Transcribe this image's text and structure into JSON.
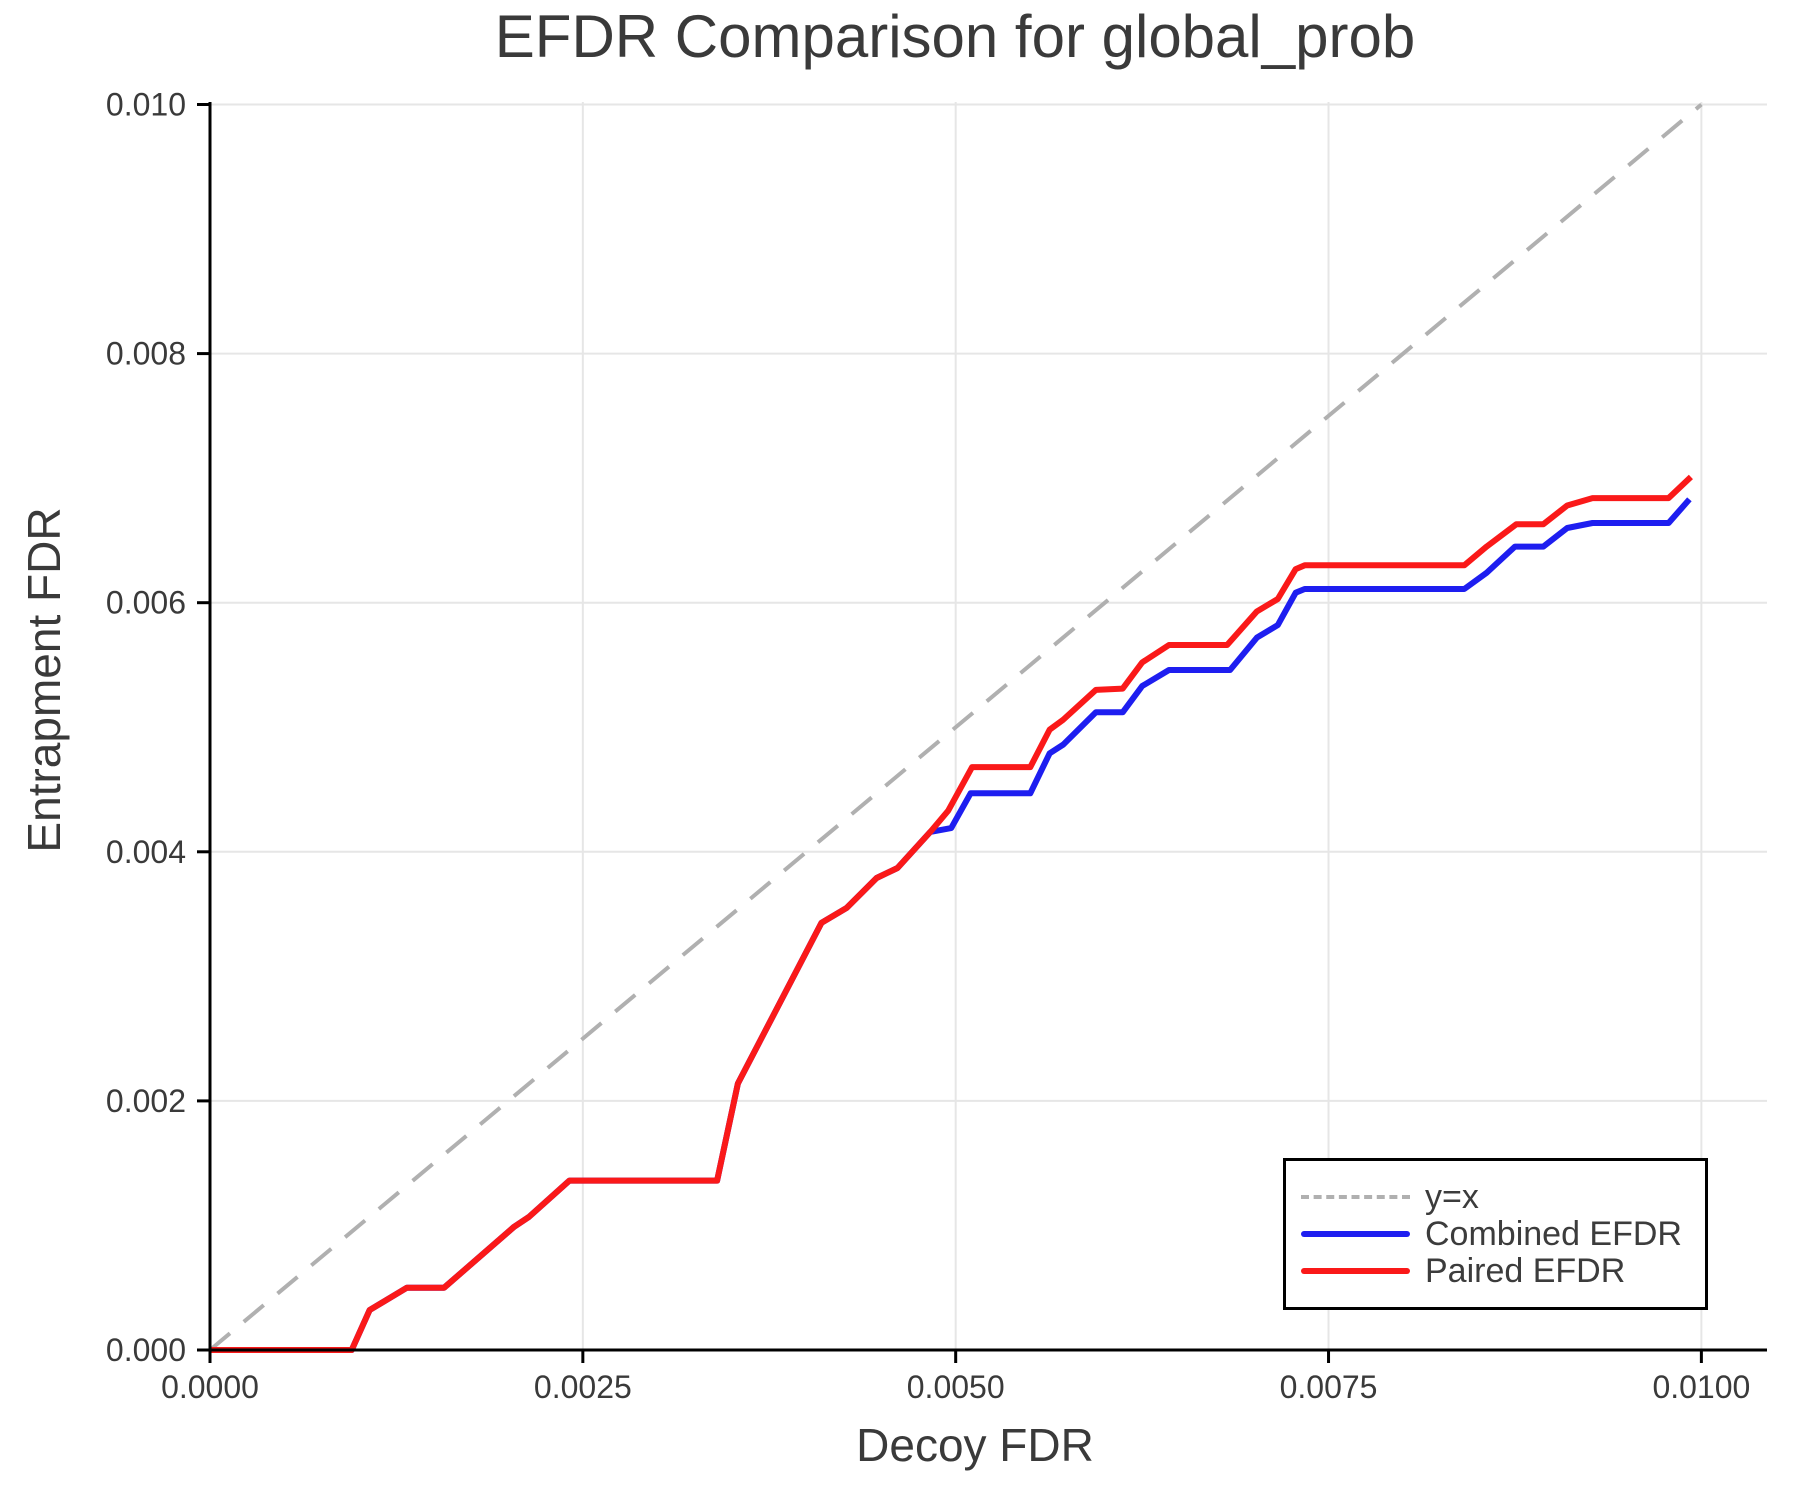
{
  "chart_data": {
    "type": "line",
    "title": "EFDR Comparison for global_prob",
    "xlabel": "Decoy FDR",
    "ylabel": "Entrapment FDR",
    "xlim": [
      0,
      0.01044
    ],
    "ylim": [
      0,
      0.01002
    ],
    "grid": true,
    "x_ticks": {
      "values": [
        0.0,
        0.0025,
        0.005,
        0.0075,
        0.01
      ],
      "labels": [
        "0.0000",
        "0.0025",
        "0.0050",
        "0.0075",
        "0.0100"
      ]
    },
    "y_ticks": {
      "values": [
        0.0,
        0.002,
        0.004,
        0.006,
        0.008,
        0.01
      ],
      "labels": [
        "0.000",
        "0.002",
        "0.004",
        "0.006",
        "0.008",
        "0.010"
      ]
    },
    "legend": {
      "position": "bottom-right"
    },
    "series": [
      {
        "name": "y=x",
        "color": "#b0b0b0",
        "style": "dashed",
        "width": 4,
        "points": [
          [
            0.0,
            0.0
          ],
          [
            0.01,
            0.01
          ]
        ]
      },
      {
        "name": "Combined EFDR",
        "color": "#1e1ef0",
        "style": "solid",
        "width": 6,
        "points": [
          [
            0.0,
            0.0
          ],
          [
            0.00095,
            0.0
          ],
          [
            0.00107,
            0.00032
          ],
          [
            0.00132,
            0.0005
          ],
          [
            0.00157,
            0.0005
          ],
          [
            0.00204,
            0.00099
          ],
          [
            0.00214,
            0.00107
          ],
          [
            0.00241,
            0.00136
          ],
          [
            0.0034,
            0.00136
          ],
          [
            0.00354,
            0.00214
          ],
          [
            0.0041,
            0.00343
          ],
          [
            0.00427,
            0.00355
          ],
          [
            0.00447,
            0.00379
          ],
          [
            0.00461,
            0.00387
          ],
          [
            0.00483,
            0.00416
          ],
          [
            0.00497,
            0.00419
          ],
          [
            0.0051,
            0.00447
          ],
          [
            0.0055,
            0.00447
          ],
          [
            0.00563,
            0.00479
          ],
          [
            0.00572,
            0.00486
          ],
          [
            0.00594,
            0.00512
          ],
          [
            0.00612,
            0.00512
          ],
          [
            0.00625,
            0.00533
          ],
          [
            0.00643,
            0.00546
          ],
          [
            0.00684,
            0.00546
          ],
          [
            0.00702,
            0.00572
          ],
          [
            0.00716,
            0.00582
          ],
          [
            0.00728,
            0.00608
          ],
          [
            0.00734,
            0.00611
          ],
          [
            0.00841,
            0.00611
          ],
          [
            0.00856,
            0.00624
          ],
          [
            0.00875,
            0.00645
          ],
          [
            0.00894,
            0.00645
          ],
          [
            0.0091,
            0.0066
          ],
          [
            0.00927,
            0.00664
          ],
          [
            0.00978,
            0.00664
          ],
          [
            0.00992,
            0.00683
          ]
        ]
      },
      {
        "name": "Paired EFDR",
        "color": "#fa1919",
        "style": "solid",
        "width": 6,
        "points": [
          [
            0.0,
            0.0
          ],
          [
            0.00095,
            0.0
          ],
          [
            0.00107,
            0.00032
          ],
          [
            0.00132,
            0.0005
          ],
          [
            0.00157,
            0.0005
          ],
          [
            0.00204,
            0.00099
          ],
          [
            0.00214,
            0.00107
          ],
          [
            0.00241,
            0.00136
          ],
          [
            0.0034,
            0.00136
          ],
          [
            0.00354,
            0.00214
          ],
          [
            0.0041,
            0.00343
          ],
          [
            0.00427,
            0.00355
          ],
          [
            0.00447,
            0.00379
          ],
          [
            0.00461,
            0.00387
          ],
          [
            0.00483,
            0.00416
          ],
          [
            0.00495,
            0.00433
          ],
          [
            0.00511,
            0.00468
          ],
          [
            0.0055,
            0.00468
          ],
          [
            0.00563,
            0.00498
          ],
          [
            0.00572,
            0.00506
          ],
          [
            0.00594,
            0.0053
          ],
          [
            0.00612,
            0.00531
          ],
          [
            0.00625,
            0.00552
          ],
          [
            0.00643,
            0.00566
          ],
          [
            0.00682,
            0.00566
          ],
          [
            0.00702,
            0.00593
          ],
          [
            0.00716,
            0.00603
          ],
          [
            0.00728,
            0.00627
          ],
          [
            0.00734,
            0.0063
          ],
          [
            0.00841,
            0.0063
          ],
          [
            0.00856,
            0.00645
          ],
          [
            0.00876,
            0.00663
          ],
          [
            0.00894,
            0.00663
          ],
          [
            0.0091,
            0.00678
          ],
          [
            0.00927,
            0.00684
          ],
          [
            0.00978,
            0.00684
          ],
          [
            0.00993,
            0.00701
          ]
        ]
      }
    ],
    "colors": {
      "grid": "#e6e6e6",
      "axis": "#000000",
      "tick_text": "#3a3a3a"
    }
  }
}
